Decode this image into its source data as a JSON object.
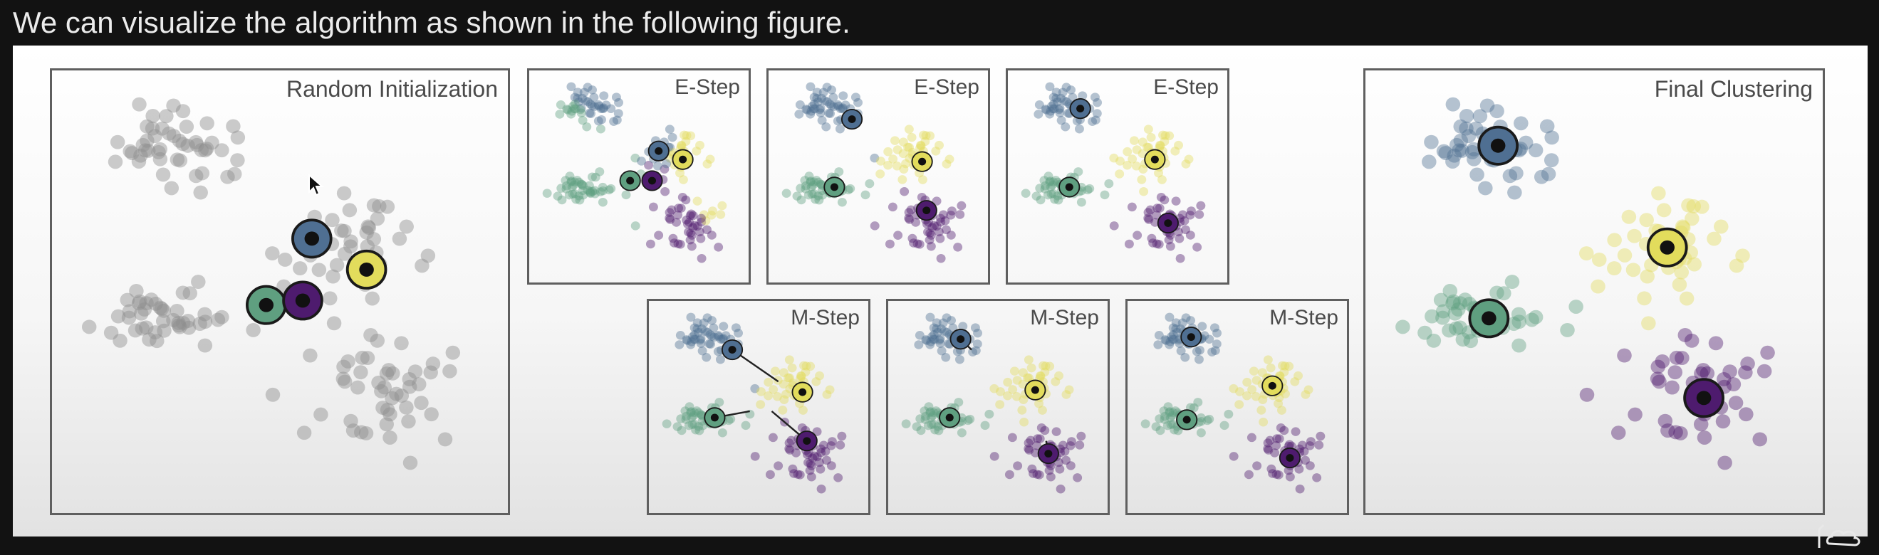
{
  "caption": "We can visualize the algorithm as shown in the following figure.",
  "colors": {
    "blue": "#4f6f92",
    "green": "#5f9f80",
    "yellow": "#e2dc5c",
    "purple": "#4e1b6e",
    "gray": "#8e8e8e",
    "background": "#121212"
  },
  "panels": [
    {
      "title": "Random Initialization",
      "stage": "init"
    },
    {
      "title": "E-Step",
      "stage": "e1"
    },
    {
      "title": "E-Step",
      "stage": "e2"
    },
    {
      "title": "E-Step",
      "stage": "e3"
    },
    {
      "title": "M-Step",
      "stage": "m1"
    },
    {
      "title": "M-Step",
      "stage": "m2"
    },
    {
      "title": "M-Step",
      "stage": "m3"
    },
    {
      "title": "Final Clustering",
      "stage": "final"
    }
  ],
  "icons": {
    "cursor": "mouse-pointer-icon",
    "logo": "channel-logo-icon"
  }
}
